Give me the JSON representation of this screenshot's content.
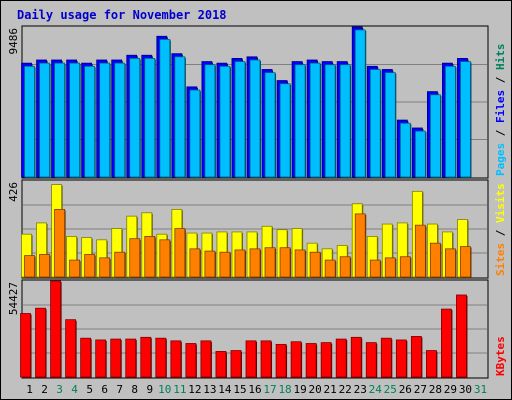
{
  "chart_data": {
    "type": "bar",
    "title": "Daily usage for November 2018",
    "days": [
      "1",
      "2",
      "3",
      "4",
      "5",
      "6",
      "7",
      "8",
      "9",
      "10",
      "11",
      "12",
      "13",
      "14",
      "15",
      "16",
      "17",
      "18",
      "19",
      "20",
      "21",
      "22",
      "23",
      "24",
      "25",
      "26",
      "27",
      "28",
      "29",
      "30",
      "31"
    ],
    "weekend_days": [
      "3",
      "4",
      "10",
      "11",
      "17",
      "18",
      "24",
      "25",
      "31"
    ],
    "panels": [
      {
        "id": "pages_files_hits",
        "max_label": "9486",
        "axis_max": 9486,
        "series": [
          {
            "name": "Hits",
            "color": "#00805c",
            "values": [
              null,
              null,
              null,
              null,
              null,
              null,
              null,
              null,
              null,
              null,
              null,
              null,
              null,
              null,
              null,
              null,
              null,
              null,
              null,
              null,
              null,
              null,
              null,
              null,
              null,
              null,
              null,
              null,
              null,
              null,
              null
            ]
          },
          {
            "name": "Files",
            "color": "#0000ff",
            "values": [
              7200,
              7400,
              7400,
              7400,
              7200,
              7400,
              7400,
              7700,
              7700,
              8900,
              7800,
              5700,
              7300,
              7200,
              7500,
              7600,
              6800,
              6100,
              7300,
              7400,
              7300,
              7300,
              9486,
              7000,
              6800,
              3600,
              3100,
              5400,
              7200,
              7500,
              null
            ]
          },
          {
            "name": "Pages",
            "color": "#00bfff",
            "values": [
              7000,
              7200,
              7200,
              7200,
              7000,
              7200,
              7200,
              7500,
              7500,
              8700,
              7600,
              5500,
              7100,
              7000,
              7300,
              7400,
              6600,
              5900,
              7100,
              7200,
              7100,
              7100,
              9300,
              6800,
              6600,
              3400,
              2900,
              5200,
              7000,
              7300,
              null
            ]
          }
        ]
      },
      {
        "id": "sites_visits",
        "max_label": "426",
        "axis_max": 426,
        "series": [
          {
            "name": "Visits",
            "color": "#ffff00",
            "values": [
              190,
              240,
              410,
              180,
              175,
              165,
              215,
              270,
              285,
              190,
              300,
              195,
              195,
              200,
              200,
              200,
              225,
              210,
              215,
              150,
              125,
              140,
              325,
              180,
              235,
              240,
              380,
              235,
              200,
              255,
              null
            ]
          },
          {
            "name": "Sites",
            "color": "#ff8000",
            "values": [
              95,
              100,
              300,
              75,
              100,
              85,
              110,
              170,
              180,
              165,
              215,
              125,
              115,
              110,
              120,
              125,
              130,
              130,
              120,
              110,
              75,
              90,
              280,
              75,
              85,
              90,
              230,
              150,
              125,
              135,
              null
            ]
          }
        ]
      },
      {
        "id": "kbytes",
        "max_label": "54427",
        "axis_max": 54427,
        "series": [
          {
            "name": "KBytes",
            "color": "#ff0000",
            "values": [
              36000,
              39000,
              54427,
              32500,
              22000,
              21000,
              21500,
              21500,
              22500,
              22000,
              20500,
              19000,
              20500,
              14500,
              15000,
              20500,
              20500,
              18500,
              20000,
              19000,
              19500,
              21500,
              22500,
              19500,
              22000,
              21000,
              23000,
              15000,
              38500,
              46500,
              null
            ]
          }
        ]
      }
    ]
  }
}
